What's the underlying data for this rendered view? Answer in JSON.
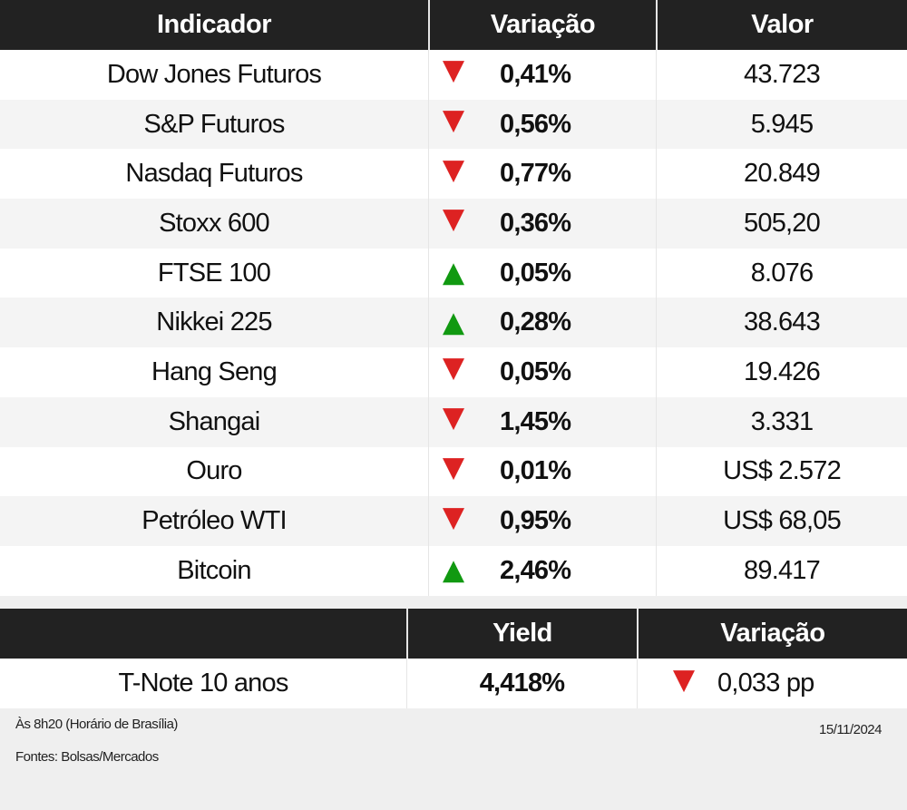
{
  "main_table": {
    "headers": {
      "indicador": "Indicador",
      "variacao": "Variação",
      "valor": "Valor"
    },
    "rows": [
      {
        "name": "Dow Jones Futuros",
        "direction": "down",
        "change": "0,41%",
        "value": "43.723"
      },
      {
        "name": "S&P Futuros",
        "direction": "down",
        "change": "0,56%",
        "value": "5.945"
      },
      {
        "name": "Nasdaq Futuros",
        "direction": "down",
        "change": "0,77%",
        "value": "20.849"
      },
      {
        "name": "Stoxx 600",
        "direction": "down",
        "change": "0,36%",
        "value": "505,20"
      },
      {
        "name": "FTSE 100",
        "direction": "up",
        "change": "0,05%",
        "value": "8.076"
      },
      {
        "name": "Nikkei 225",
        "direction": "up",
        "change": "0,28%",
        "value": "38.643"
      },
      {
        "name": "Hang Seng",
        "direction": "down",
        "change": "0,05%",
        "value": "19.426"
      },
      {
        "name": "Shangai",
        "direction": "down",
        "change": "1,45%",
        "value": "3.331"
      },
      {
        "name": "Ouro",
        "direction": "down",
        "change": "0,01%",
        "value": "US$ 2.572"
      },
      {
        "name": "Petróleo WTI",
        "direction": "down",
        "change": "0,95%",
        "value": "US$ 68,05"
      },
      {
        "name": "Bitcoin",
        "direction": "up",
        "change": "2,46%",
        "value": "89.417"
      }
    ]
  },
  "bond_table": {
    "headers": {
      "blank": "",
      "yield": "Yield",
      "variacao": "Variação"
    },
    "row": {
      "name": "T-Note 10 anos",
      "yield": "4,418%",
      "direction": "down",
      "change": "0,033 pp"
    }
  },
  "footer": {
    "time_note": "Às 8h20 (Horário de Brasília)",
    "sources": "Fontes: Bolsas/Mercados",
    "date": "15/11/2024"
  },
  "colors": {
    "header_bg": "#222222",
    "down": "#dd2222",
    "up": "#119911",
    "alt_row": "#f4f4f4",
    "footer_bg": "#efefef"
  }
}
